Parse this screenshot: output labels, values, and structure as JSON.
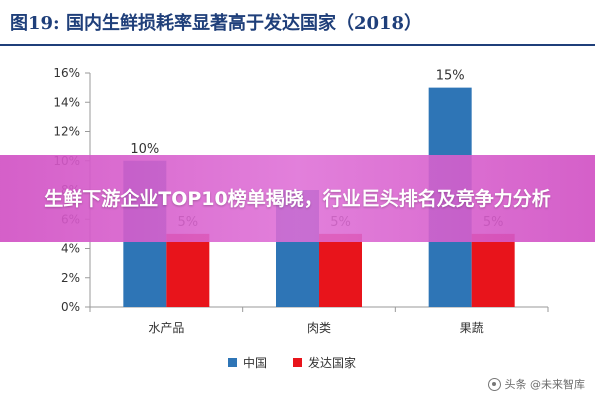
{
  "header": {
    "title": "图19:  国内生鲜损耗率显著高于发达国家（2018）"
  },
  "overlay": {
    "headline": "生鲜下游企业TOP10榜单揭晓，行业巨头排名及竞争力分析"
  },
  "watermark": {
    "text": "头条 @未来智库"
  },
  "chart_data": {
    "type": "bar",
    "title": "",
    "xlabel": "",
    "ylabel": "",
    "categories": [
      "水产品",
      "肉类",
      "果蔬"
    ],
    "series": [
      {
        "name": "中国",
        "values": [
          10,
          8,
          15
        ],
        "color": "#2e75b6"
      },
      {
        "name": "发达国家",
        "values": [
          5,
          5,
          5
        ],
        "color": "#e8141b"
      }
    ],
    "data_labels": [
      "10%",
      "",
      "15%",
      "5%",
      "5%",
      "5%"
    ],
    "ylim": [
      0,
      16
    ],
    "yticks": [
      0,
      2,
      4,
      6,
      8,
      10,
      12,
      14,
      16
    ],
    "ytick_labels": [
      "0%",
      "2%",
      "4%",
      "6%",
      "8%",
      "10%",
      "12%",
      "14%",
      "16%"
    ],
    "grid": false,
    "legend_position": "bottom"
  }
}
